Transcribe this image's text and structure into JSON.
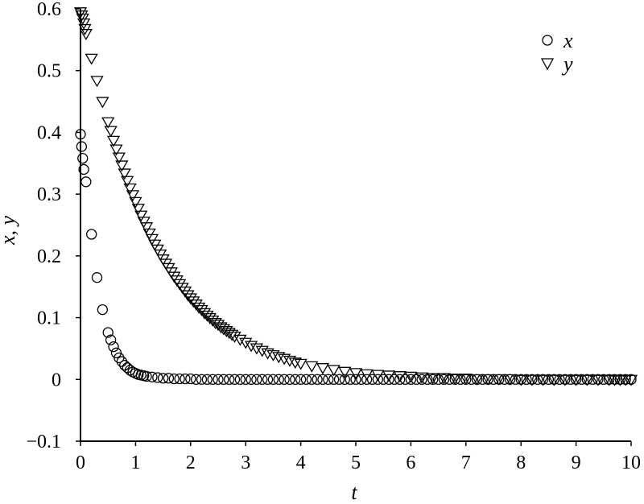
{
  "chart_data": {
    "type": "scatter",
    "title": "",
    "xlabel": "t",
    "ylabel": "x, y",
    "xlim": [
      0,
      10
    ],
    "ylim": [
      -0.1,
      0.6
    ],
    "x_ticks": [
      "0",
      "1",
      "2",
      "3",
      "4",
      "5",
      "6",
      "7",
      "8",
      "9",
      "10"
    ],
    "y_ticks": [
      "-0.1",
      "0",
      "0.1",
      "0.2",
      "0.3",
      "0.4",
      "0.5",
      "0.6"
    ],
    "grid": false,
    "legend_position": "top-right",
    "series": [
      {
        "name": "x",
        "marker": "circle",
        "x": [
          0.0,
          0.02,
          0.04,
          0.06,
          0.1,
          0.2,
          0.3,
          0.4,
          0.5,
          0.55,
          0.6,
          0.65,
          0.7,
          0.75,
          0.8,
          0.85,
          0.9,
          0.95,
          1.0,
          1.05,
          1.1,
          1.15,
          1.2,
          1.3,
          1.4,
          1.5,
          1.6,
          1.7,
          1.8,
          1.9,
          2.0,
          2.1,
          2.2,
          2.3,
          2.4,
          2.5,
          2.6,
          2.7,
          2.8,
          2.9,
          3.0,
          3.1,
          3.2,
          3.3,
          3.4,
          3.5,
          3.6,
          3.7,
          3.8,
          3.9,
          4.0,
          4.1,
          4.2,
          4.3,
          4.4,
          4.5,
          4.6,
          4.7,
          4.8,
          4.9,
          5.0,
          5.1,
          5.2,
          5.3,
          5.4,
          5.5,
          5.6,
          5.7,
          5.8,
          5.9,
          6.0,
          6.1,
          6.2,
          6.3,
          6.4,
          6.5,
          6.6,
          6.7,
          6.8,
          6.9,
          7.0,
          7.1,
          7.2,
          7.3,
          7.4,
          7.5,
          7.6,
          7.7,
          7.8,
          7.9,
          8.0,
          8.1,
          8.2,
          8.3,
          8.4,
          8.5,
          8.6,
          8.7,
          8.8,
          8.9,
          9.0,
          9.1,
          9.2,
          9.3,
          9.4,
          9.5,
          9.6,
          9.7,
          9.8,
          9.9,
          10.0
        ],
        "y": [
          0.397,
          0.377,
          0.358,
          0.34,
          0.32,
          0.235,
          0.165,
          0.113,
          0.076,
          0.064,
          0.053,
          0.043,
          0.035,
          0.029,
          0.023,
          0.019,
          0.015,
          0.012,
          0.01,
          0.008,
          0.007,
          0.006,
          0.005,
          0.004,
          0.003,
          0.002,
          0.002,
          0.001,
          0.001,
          0.001,
          0.001,
          0.0,
          0.0,
          0.0,
          0.0,
          0.0,
          0.0,
          0.0,
          0.0,
          0.0,
          0.0,
          0.0,
          0.0,
          0.0,
          0.0,
          0.0,
          0.0,
          0.0,
          0.0,
          0.0,
          0.0,
          0.0,
          0.0,
          0.0,
          0.0,
          0.0,
          0.0,
          0.0,
          0.0,
          0.0,
          0.0,
          0.0,
          0.0,
          0.0,
          0.0,
          0.0,
          0.0,
          0.0,
          0.0,
          0.0,
          0.0,
          0.0,
          0.0,
          0.0,
          0.0,
          0.0,
          0.0,
          0.0,
          0.0,
          0.0,
          0.0,
          0.0,
          0.0,
          0.0,
          0.0,
          0.0,
          0.0,
          0.0,
          0.0,
          0.0,
          0.0,
          0.0,
          0.0,
          0.0,
          0.0,
          0.0,
          0.0,
          0.0,
          0.0,
          0.0,
          0.0,
          0.0,
          0.0,
          0.0,
          0.0,
          0.0,
          0.0,
          0.0,
          0.0,
          0.0,
          0.0
        ]
      },
      {
        "name": "y",
        "marker": "triangle-down",
        "x": [
          0.0,
          0.02,
          0.04,
          0.06,
          0.08,
          0.1,
          0.2,
          0.3,
          0.4,
          0.5,
          0.55,
          0.6,
          0.65,
          0.7,
          0.75,
          0.8,
          0.85,
          0.9,
          0.95,
          1.0,
          1.05,
          1.1,
          1.15,
          1.2,
          1.25,
          1.3,
          1.35,
          1.4,
          1.45,
          1.5,
          1.55,
          1.6,
          1.65,
          1.7,
          1.75,
          1.8,
          1.85,
          1.9,
          1.95,
          2.0,
          2.05,
          2.1,
          2.15,
          2.2,
          2.25,
          2.3,
          2.35,
          2.4,
          2.45,
          2.5,
          2.55,
          2.6,
          2.65,
          2.7,
          2.75,
          2.8,
          2.9,
          3.0,
          3.1,
          3.2,
          3.3,
          3.4,
          3.5,
          3.6,
          3.7,
          3.8,
          3.9,
          4.0,
          4.2,
          4.4,
          4.6,
          4.8,
          5.0,
          5.2,
          5.4,
          5.6,
          5.8,
          6.0,
          6.2,
          6.4,
          6.6,
          6.8,
          7.0,
          7.2,
          7.4,
          7.6,
          7.8,
          8.0,
          8.2,
          8.4,
          8.6,
          8.8,
          9.0,
          9.2,
          9.4,
          9.6,
          9.7,
          9.8,
          9.9,
          10.0
        ],
        "y": [
          0.595,
          0.59,
          0.585,
          0.577,
          0.568,
          0.56,
          0.52,
          0.484,
          0.45,
          0.417,
          0.403,
          0.387,
          0.373,
          0.36,
          0.347,
          0.334,
          0.322,
          0.31,
          0.299,
          0.288,
          0.277,
          0.266,
          0.256,
          0.247,
          0.237,
          0.228,
          0.219,
          0.211,
          0.203,
          0.195,
          0.188,
          0.181,
          0.174,
          0.167,
          0.161,
          0.155,
          0.149,
          0.143,
          0.137,
          0.132,
          0.127,
          0.122,
          0.117,
          0.113,
          0.108,
          0.104,
          0.1,
          0.096,
          0.092,
          0.089,
          0.085,
          0.082,
          0.079,
          0.076,
          0.073,
          0.07,
          0.065,
          0.06,
          0.055,
          0.051,
          0.047,
          0.043,
          0.04,
          0.037,
          0.034,
          0.031,
          0.028,
          0.026,
          0.022,
          0.019,
          0.016,
          0.013,
          0.011,
          0.009,
          0.008,
          0.007,
          0.006,
          0.005,
          0.004,
          0.003,
          0.003,
          0.002,
          0.002,
          0.001,
          0.001,
          0.001,
          0.001,
          0.0,
          0.0,
          0.0,
          0.0,
          0.0,
          0.0,
          0.0,
          0.0,
          0.0,
          0.0,
          0.0,
          0.0,
          0.0
        ]
      }
    ]
  }
}
